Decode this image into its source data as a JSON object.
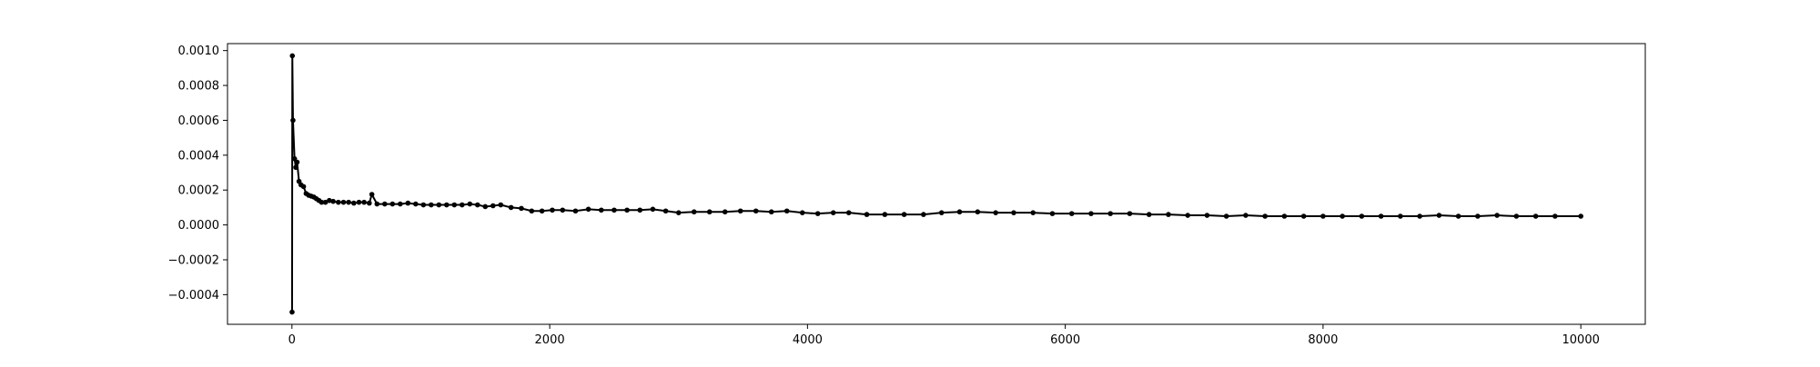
{
  "chart_data": {
    "type": "line",
    "title": "",
    "xlabel": "",
    "ylabel": "",
    "xlim": [
      -500,
      10500
    ],
    "ylim": [
      -0.00057,
      0.00104
    ],
    "xticks": [
      0,
      2000,
      4000,
      6000,
      8000,
      10000
    ],
    "xtick_labels": [
      "0",
      "2000",
      "4000",
      "6000",
      "8000",
      "10000"
    ],
    "yticks": [
      -0.0004,
      -0.0002,
      0.0,
      0.0002,
      0.0004,
      0.0006,
      0.0008,
      0.001
    ],
    "ytick_labels": [
      "−0.0004",
      "−0.0002",
      "0.0000",
      "0.0002",
      "0.0004",
      "0.0006",
      "0.0008",
      "0.0010"
    ],
    "grid": false,
    "legend": "none",
    "line_color": "#000000",
    "marker": "point",
    "series": [
      {
        "name": "",
        "x": [
          1,
          3,
          8,
          20,
          30,
          40,
          55,
          70,
          90,
          110,
          130,
          150,
          170,
          190,
          210,
          230,
          260,
          290,
          320,
          360,
          400,
          440,
          480,
          520,
          560,
          600,
          620,
          660,
          720,
          780,
          840,
          900,
          960,
          1020,
          1080,
          1140,
          1200,
          1260,
          1320,
          1380,
          1440,
          1500,
          1560,
          1620,
          1700,
          1780,
          1860,
          1940,
          2020,
          2100,
          2200,
          2300,
          2400,
          2500,
          2600,
          2700,
          2800,
          2900,
          3000,
          3120,
          3240,
          3360,
          3480,
          3600,
          3720,
          3840,
          3960,
          4080,
          4200,
          4320,
          4460,
          4600,
          4750,
          4900,
          5040,
          5180,
          5320,
          5460,
          5600,
          5750,
          5900,
          6050,
          6200,
          6350,
          6500,
          6650,
          6800,
          6950,
          7100,
          7250,
          7400,
          7550,
          7700,
          7850,
          8000,
          8150,
          8300,
          8450,
          8600,
          8750,
          8900,
          9050,
          9200,
          9350,
          9500,
          9650,
          9800,
          10000
        ],
        "y": [
          -0.0005,
          0.00097,
          0.0006,
          0.00038,
          0.00033,
          0.00036,
          0.00025,
          0.00023,
          0.00022,
          0.00018,
          0.00017,
          0.000165,
          0.00016,
          0.00015,
          0.00014,
          0.00013,
          0.00013,
          0.00014,
          0.000135,
          0.00013,
          0.00013,
          0.00013,
          0.000125,
          0.00013,
          0.00013,
          0.000125,
          0.000175,
          0.00012,
          0.00012,
          0.00012,
          0.00012,
          0.000125,
          0.00012,
          0.000115,
          0.000115,
          0.000115,
          0.000115,
          0.000115,
          0.000115,
          0.00012,
          0.000115,
          0.000105,
          0.00011,
          0.000115,
          0.0001,
          9.5e-05,
          8e-05,
          8e-05,
          8.5e-05,
          8.5e-05,
          8e-05,
          9e-05,
          8.5e-05,
          8.5e-05,
          8.5e-05,
          8.5e-05,
          9e-05,
          8e-05,
          7e-05,
          7.5e-05,
          7.5e-05,
          7.5e-05,
          8e-05,
          8e-05,
          7.5e-05,
          8e-05,
          7e-05,
          6.5e-05,
          7e-05,
          7e-05,
          6e-05,
          6e-05,
          6e-05,
          6e-05,
          7e-05,
          7.5e-05,
          7.5e-05,
          7e-05,
          7e-05,
          7e-05,
          6.5e-05,
          6.5e-05,
          6.5e-05,
          6.5e-05,
          6.5e-05,
          6e-05,
          6e-05,
          5.5e-05,
          5.5e-05,
          5e-05,
          5.5e-05,
          5e-05,
          5e-05,
          5e-05,
          5e-05,
          5e-05,
          5e-05,
          5e-05,
          5e-05,
          5e-05,
          5.5e-05,
          5e-05,
          5e-05,
          5.5e-05,
          5e-05,
          5e-05,
          5e-05,
          5e-05
        ]
      }
    ]
  }
}
